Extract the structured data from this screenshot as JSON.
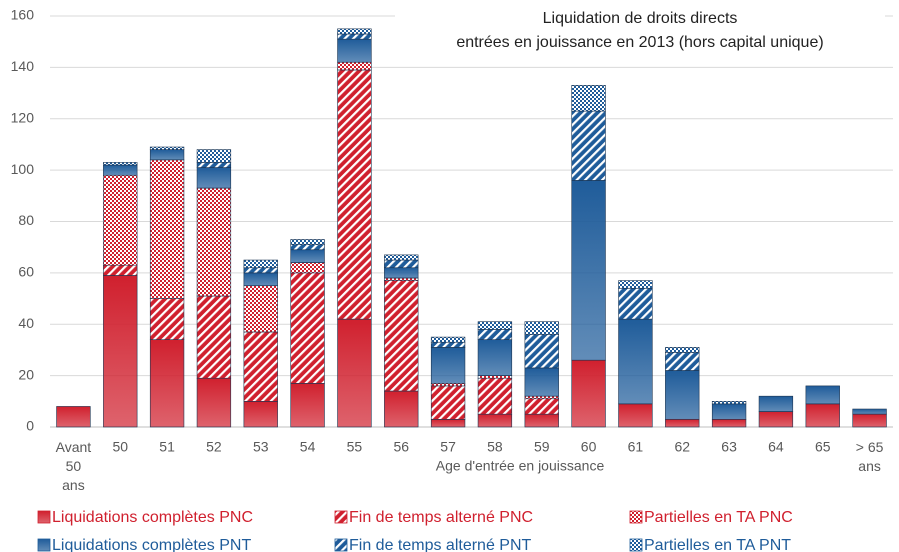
{
  "chart_data": {
    "type": "bar",
    "stacked": true,
    "title": "Liquidation de droits directs",
    "subtitle": "entrées en jouissance en 2013 (hors capital unique)",
    "x_label": "Age d'entrée en jouissance",
    "categories": [
      "Avant 50 ans",
      "50",
      "51",
      "52",
      "53",
      "54",
      "55",
      "56",
      "57",
      "58",
      "59",
      "60",
      "61",
      "62",
      "63",
      "64",
      "65",
      "> 65 ans"
    ],
    "ylim": [
      0,
      160
    ],
    "yticks": [
      0,
      20,
      40,
      60,
      80,
      100,
      120,
      140,
      160
    ],
    "grid": true,
    "legend": "bottom",
    "series": [
      {
        "name": "Liquidations complètes PNC",
        "color": "#d0202e",
        "pattern": "solid",
        "values": [
          8,
          59,
          34,
          19,
          10,
          17,
          42,
          14,
          3,
          5,
          5,
          26,
          9,
          3,
          3,
          6,
          9,
          5
        ]
      },
      {
        "name": "Fin de temps alterné PNC",
        "color": "#d0202e",
        "pattern": "hatch",
        "values": [
          0,
          4,
          16,
          32,
          27,
          43,
          97,
          43,
          13,
          14,
          6,
          0,
          0,
          0,
          0,
          0,
          0,
          0
        ]
      },
      {
        "name": "Partielles en TA PNC",
        "color": "#d0202e",
        "pattern": "dots",
        "values": [
          0,
          35,
          54,
          42,
          18,
          4,
          3,
          1,
          1,
          1,
          1,
          0,
          0,
          0,
          0,
          0,
          0,
          0
        ]
      },
      {
        "name": "Liquidations complètes PNT",
        "color": "#1f5c9a",
        "pattern": "solid",
        "values": [
          0,
          4,
          4,
          8,
          5,
          5,
          9,
          4,
          14,
          14,
          11,
          70,
          33,
          19,
          6,
          6,
          7,
          2
        ]
      },
      {
        "name": "Fin de temps alterné PNT",
        "color": "#1f5c9a",
        "pattern": "hatch",
        "values": [
          0,
          0,
          0,
          2,
          2,
          2,
          2,
          3,
          2,
          4,
          13,
          27,
          12,
          7,
          0,
          0,
          0,
          0
        ]
      },
      {
        "name": "Partielles en TA PNT",
        "color": "#1f5c9a",
        "pattern": "dots",
        "values": [
          0,
          1,
          1,
          5,
          3,
          2,
          2,
          2,
          2,
          3,
          5,
          10,
          3,
          2,
          1,
          0,
          0,
          0
        ]
      }
    ]
  }
}
